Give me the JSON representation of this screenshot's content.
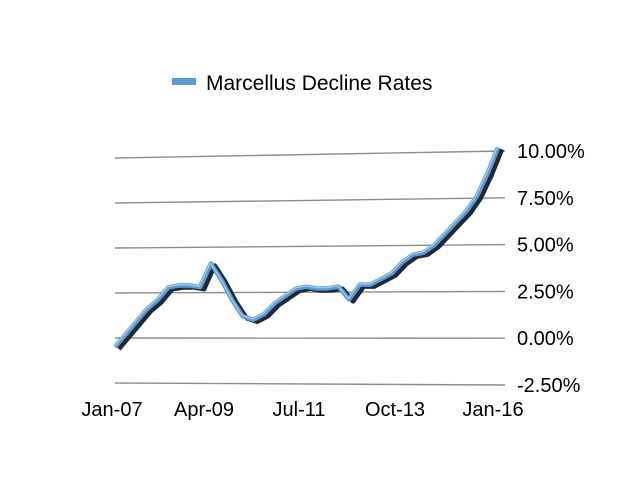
{
  "chart_data": {
    "type": "line",
    "title": "",
    "xlabel": "",
    "ylabel": "",
    "ylim": [
      -0.025,
      0.1
    ],
    "legend": {
      "position": "top",
      "entries": [
        "Marcellus Decline Rates"
      ]
    },
    "grid": true,
    "x_tick_labels": [
      "Jan-07",
      "Apr-09",
      "Jul-11",
      "Oct-13",
      "Jan-16"
    ],
    "y_tick_labels": [
      "10.00%",
      "7.50%",
      "5.00%",
      "2.50%",
      "0.00%",
      "-2.50%"
    ],
    "y_ticks": [
      0.1,
      0.075,
      0.05,
      0.025,
      0.0,
      -0.025
    ],
    "series": [
      {
        "name": "Marcellus Decline Rates",
        "color": "#5b9bd5",
        "shadow_color": "#1f2a36",
        "x": [
          "2007-01",
          "2007-04",
          "2007-07",
          "2007-10",
          "2008-01",
          "2008-04",
          "2008-07",
          "2008-10",
          "2009-01",
          "2009-04",
          "2009-07",
          "2009-10",
          "2010-01",
          "2010-04",
          "2010-07",
          "2010-10",
          "2011-01",
          "2011-04",
          "2011-07",
          "2011-10",
          "2012-01",
          "2012-04",
          "2012-07",
          "2012-10",
          "2013-01",
          "2013-04",
          "2013-07",
          "2013-10",
          "2014-01",
          "2014-04",
          "2014-07",
          "2014-10",
          "2015-01",
          "2015-04",
          "2015-07",
          "2015-10",
          "2016-01"
        ],
        "values": [
          -0.005,
          0.002,
          0.009,
          0.016,
          0.021,
          0.028,
          0.029,
          0.029,
          0.028,
          0.041,
          0.032,
          0.021,
          0.012,
          0.01,
          0.013,
          0.019,
          0.023,
          0.027,
          0.028,
          0.027,
          0.027,
          0.028,
          0.021,
          0.029,
          0.029,
          0.032,
          0.035,
          0.041,
          0.045,
          0.046,
          0.05,
          0.056,
          0.062,
          0.068,
          0.076,
          0.088,
          0.102
        ]
      }
    ]
  }
}
